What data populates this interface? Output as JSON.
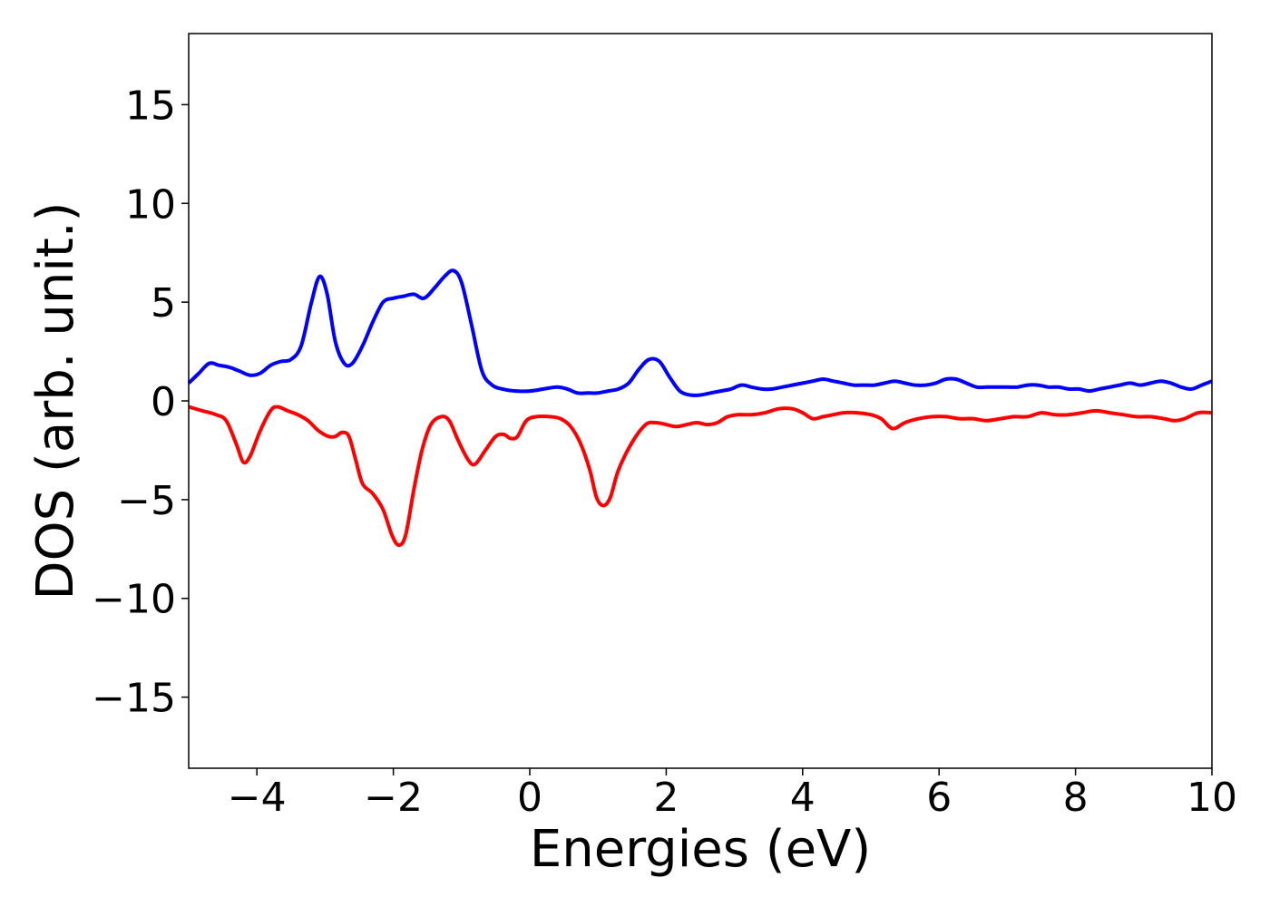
{
  "chart_data": {
    "type": "line",
    "title": "",
    "xlabel": "Energies (eV)",
    "ylabel": "DOS (arb. unit.)",
    "xlim": [
      -5,
      10
    ],
    "ylim": [
      -18.6,
      18.6
    ],
    "xticks": [
      -4,
      -2,
      0,
      2,
      4,
      6,
      8,
      10
    ],
    "xtick_labels": [
      "−4",
      "−2",
      "0",
      "2",
      "4",
      "6",
      "8",
      "10"
    ],
    "yticks": [
      15,
      10,
      5,
      0,
      -5,
      -10,
      -15
    ],
    "ytick_labels": [
      "15",
      "10",
      "5",
      "0",
      "−5",
      "−10",
      "−15"
    ],
    "grid": false,
    "legend": "none",
    "series": [
      {
        "color": "#0000ff",
        "points": [
          [
            -5.0,
            0.9
          ],
          [
            -4.85,
            1.4
          ],
          [
            -4.7,
            1.9
          ],
          [
            -4.55,
            1.8
          ],
          [
            -4.4,
            1.7
          ],
          [
            -4.25,
            1.5
          ],
          [
            -4.1,
            1.3
          ],
          [
            -3.95,
            1.4
          ],
          [
            -3.8,
            1.8
          ],
          [
            -3.65,
            2.0
          ],
          [
            -3.5,
            2.1
          ],
          [
            -3.35,
            2.8
          ],
          [
            -3.2,
            5.0
          ],
          [
            -3.08,
            6.3
          ],
          [
            -2.97,
            5.4
          ],
          [
            -2.85,
            3.0
          ],
          [
            -2.72,
            1.9
          ],
          [
            -2.6,
            1.9
          ],
          [
            -2.45,
            2.8
          ],
          [
            -2.3,
            4.0
          ],
          [
            -2.15,
            5.0
          ],
          [
            -2.0,
            5.2
          ],
          [
            -1.85,
            5.3
          ],
          [
            -1.7,
            5.4
          ],
          [
            -1.55,
            5.2
          ],
          [
            -1.4,
            5.7
          ],
          [
            -1.25,
            6.3
          ],
          [
            -1.12,
            6.6
          ],
          [
            -1.0,
            6.0
          ],
          [
            -0.85,
            3.8
          ],
          [
            -0.7,
            1.5
          ],
          [
            -0.55,
            0.8
          ],
          [
            -0.4,
            0.6
          ],
          [
            -0.2,
            0.5
          ],
          [
            0.0,
            0.5
          ],
          [
            0.2,
            0.6
          ],
          [
            0.4,
            0.7
          ],
          [
            0.55,
            0.6
          ],
          [
            0.7,
            0.4
          ],
          [
            0.85,
            0.4
          ],
          [
            1.0,
            0.4
          ],
          [
            1.15,
            0.5
          ],
          [
            1.3,
            0.6
          ],
          [
            1.45,
            0.9
          ],
          [
            1.6,
            1.6
          ],
          [
            1.75,
            2.1
          ],
          [
            1.9,
            2.0
          ],
          [
            2.05,
            1.2
          ],
          [
            2.2,
            0.5
          ],
          [
            2.35,
            0.3
          ],
          [
            2.5,
            0.3
          ],
          [
            2.65,
            0.4
          ],
          [
            2.8,
            0.5
          ],
          [
            2.95,
            0.6
          ],
          [
            3.1,
            0.8
          ],
          [
            3.25,
            0.7
          ],
          [
            3.4,
            0.6
          ],
          [
            3.55,
            0.6
          ],
          [
            3.7,
            0.7
          ],
          [
            3.85,
            0.8
          ],
          [
            4.0,
            0.9
          ],
          [
            4.15,
            1.0
          ],
          [
            4.3,
            1.1
          ],
          [
            4.45,
            1.0
          ],
          [
            4.6,
            0.9
          ],
          [
            4.75,
            0.8
          ],
          [
            4.9,
            0.8
          ],
          [
            5.05,
            0.8
          ],
          [
            5.2,
            0.9
          ],
          [
            5.35,
            1.0
          ],
          [
            5.5,
            0.9
          ],
          [
            5.65,
            0.8
          ],
          [
            5.8,
            0.8
          ],
          [
            5.95,
            0.9
          ],
          [
            6.1,
            1.1
          ],
          [
            6.25,
            1.1
          ],
          [
            6.4,
            0.9
          ],
          [
            6.55,
            0.7
          ],
          [
            6.7,
            0.7
          ],
          [
            6.85,
            0.7
          ],
          [
            7.0,
            0.7
          ],
          [
            7.15,
            0.7
          ],
          [
            7.3,
            0.8
          ],
          [
            7.45,
            0.8
          ],
          [
            7.6,
            0.7
          ],
          [
            7.75,
            0.7
          ],
          [
            7.9,
            0.6
          ],
          [
            8.05,
            0.6
          ],
          [
            8.2,
            0.5
          ],
          [
            8.35,
            0.6
          ],
          [
            8.5,
            0.7
          ],
          [
            8.65,
            0.8
          ],
          [
            8.8,
            0.9
          ],
          [
            8.95,
            0.8
          ],
          [
            9.1,
            0.9
          ],
          [
            9.25,
            1.0
          ],
          [
            9.4,
            0.9
          ],
          [
            9.55,
            0.7
          ],
          [
            9.7,
            0.6
          ],
          [
            9.85,
            0.8
          ],
          [
            10.0,
            1.0
          ]
        ]
      },
      {
        "color": "#ff0000",
        "points": [
          [
            -5.0,
            -0.3
          ],
          [
            -4.8,
            -0.5
          ],
          [
            -4.6,
            -0.7
          ],
          [
            -4.45,
            -1.0
          ],
          [
            -4.3,
            -2.2
          ],
          [
            -4.2,
            -3.1
          ],
          [
            -4.1,
            -2.8
          ],
          [
            -3.95,
            -1.5
          ],
          [
            -3.8,
            -0.5
          ],
          [
            -3.7,
            -0.3
          ],
          [
            -3.55,
            -0.5
          ],
          [
            -3.4,
            -0.7
          ],
          [
            -3.25,
            -1.0
          ],
          [
            -3.1,
            -1.5
          ],
          [
            -2.95,
            -1.8
          ],
          [
            -2.85,
            -1.8
          ],
          [
            -2.75,
            -1.6
          ],
          [
            -2.65,
            -1.8
          ],
          [
            -2.55,
            -3.0
          ],
          [
            -2.45,
            -4.2
          ],
          [
            -2.3,
            -4.7
          ],
          [
            -2.15,
            -5.5
          ],
          [
            -2.02,
            -6.8
          ],
          [
            -1.92,
            -7.3
          ],
          [
            -1.82,
            -6.8
          ],
          [
            -1.7,
            -4.5
          ],
          [
            -1.58,
            -2.5
          ],
          [
            -1.45,
            -1.2
          ],
          [
            -1.3,
            -0.8
          ],
          [
            -1.18,
            -1.0
          ],
          [
            -1.05,
            -2.0
          ],
          [
            -0.9,
            -3.0
          ],
          [
            -0.8,
            -3.2
          ],
          [
            -0.65,
            -2.5
          ],
          [
            -0.5,
            -1.8
          ],
          [
            -0.38,
            -1.7
          ],
          [
            -0.28,
            -1.9
          ],
          [
            -0.18,
            -1.8
          ],
          [
            -0.05,
            -1.0
          ],
          [
            0.1,
            -0.8
          ],
          [
            0.3,
            -0.8
          ],
          [
            0.45,
            -0.9
          ],
          [
            0.6,
            -1.3
          ],
          [
            0.75,
            -2.2
          ],
          [
            0.88,
            -3.5
          ],
          [
            0.98,
            -4.9
          ],
          [
            1.08,
            -5.3
          ],
          [
            1.18,
            -4.9
          ],
          [
            1.3,
            -3.5
          ],
          [
            1.5,
            -2.1
          ],
          [
            1.7,
            -1.2
          ],
          [
            1.85,
            -1.1
          ],
          [
            2.0,
            -1.2
          ],
          [
            2.15,
            -1.3
          ],
          [
            2.3,
            -1.2
          ],
          [
            2.45,
            -1.1
          ],
          [
            2.6,
            -1.2
          ],
          [
            2.75,
            -1.1
          ],
          [
            2.9,
            -0.8
          ],
          [
            3.05,
            -0.7
          ],
          [
            3.25,
            -0.7
          ],
          [
            3.45,
            -0.6
          ],
          [
            3.65,
            -0.4
          ],
          [
            3.85,
            -0.4
          ],
          [
            4.0,
            -0.6
          ],
          [
            4.15,
            -0.9
          ],
          [
            4.3,
            -0.8
          ],
          [
            4.45,
            -0.7
          ],
          [
            4.6,
            -0.6
          ],
          [
            4.8,
            -0.6
          ],
          [
            5.0,
            -0.7
          ],
          [
            5.15,
            -0.9
          ],
          [
            5.32,
            -1.4
          ],
          [
            5.5,
            -1.1
          ],
          [
            5.7,
            -0.9
          ],
          [
            5.9,
            -0.8
          ],
          [
            6.1,
            -0.8
          ],
          [
            6.3,
            -0.9
          ],
          [
            6.5,
            -0.9
          ],
          [
            6.7,
            -1.0
          ],
          [
            6.9,
            -0.9
          ],
          [
            7.1,
            -0.8
          ],
          [
            7.3,
            -0.8
          ],
          [
            7.5,
            -0.6
          ],
          [
            7.7,
            -0.7
          ],
          [
            7.9,
            -0.7
          ],
          [
            8.1,
            -0.6
          ],
          [
            8.3,
            -0.5
          ],
          [
            8.5,
            -0.6
          ],
          [
            8.7,
            -0.7
          ],
          [
            8.9,
            -0.8
          ],
          [
            9.1,
            -0.8
          ],
          [
            9.3,
            -0.9
          ],
          [
            9.45,
            -1.0
          ],
          [
            9.6,
            -0.9
          ],
          [
            9.8,
            -0.6
          ],
          [
            10.0,
            -0.6
          ]
        ]
      }
    ]
  }
}
